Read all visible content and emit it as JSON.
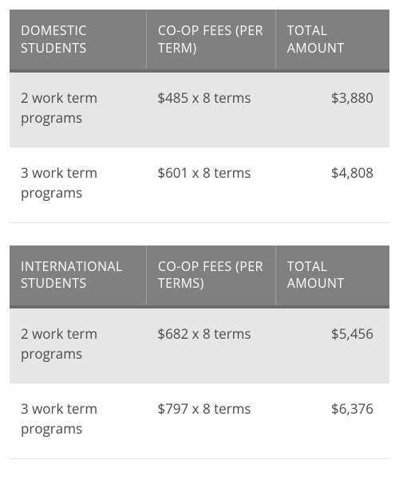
{
  "tables": [
    {
      "header_bg": "#808080",
      "header_text_color": "#ffffff",
      "row_alt_bg": "#e6e6e6",
      "row_plain_bg": "#ffffff",
      "border_color": "#e2e2e2",
      "columns": [
        "DOMESTIC STUDENTS",
        "CO-OP FEES (PER TERM)",
        "TOTAL AMOUNT"
      ],
      "rows": [
        {
          "program": "2 work term programs",
          "fees": "$485 x 8 terms",
          "total": "$3,880",
          "alt": true
        },
        {
          "program": "3 work term programs",
          "fees": "$601 x 8 terms",
          "total": "$4,808",
          "alt": false
        }
      ]
    },
    {
      "header_bg": "#808080",
      "header_text_color": "#ffffff",
      "row_alt_bg": "#e6e6e6",
      "row_plain_bg": "#ffffff",
      "border_color": "#e2e2e2",
      "columns": [
        "INTERNATIONAL STUDENTS",
        "CO-OP FEES (PER TERMS)",
        "TOTAL AMOUNT"
      ],
      "rows": [
        {
          "program": "2 work term programs",
          "fees": "$682 x 8 terms",
          "total": "$5,456",
          "alt": true
        },
        {
          "program": "3 work term programs",
          "fees": "$797 x 8 terms",
          "total": "$6,376",
          "alt": false
        }
      ]
    }
  ]
}
